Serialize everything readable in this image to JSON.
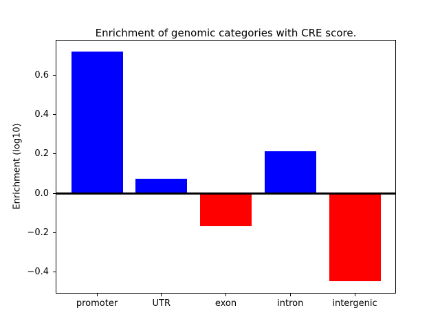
{
  "figure": {
    "background_color": "#ffffff",
    "frame_color": "#000000"
  },
  "chart_data": {
    "type": "bar",
    "title": "Enrichment of genomic categories with CRE score.",
    "ylabel": "Enrichment (log10)",
    "xlabel": "",
    "categories": [
      "promoter",
      "UTR",
      "exon",
      "intron",
      "intergenic"
    ],
    "values": [
      0.72,
      0.073,
      -0.167,
      0.212,
      -0.448
    ],
    "bar_colors": [
      "#0000ff",
      "#0000ff",
      "#ff0000",
      "#0000ff",
      "#ff0000"
    ],
    "positive_color": "#0000ff",
    "negative_color": "#ff0000",
    "yticks": [
      -0.4,
      -0.2,
      0.0,
      0.2,
      0.4,
      0.6
    ],
    "ylim": [
      -0.51,
      0.78
    ],
    "bar_width_fraction": 0.8,
    "x_outer_pad_fraction": 0.64,
    "zero_line": {
      "show": true,
      "color": "#000000"
    },
    "grid": false,
    "legend_position": "none"
  }
}
